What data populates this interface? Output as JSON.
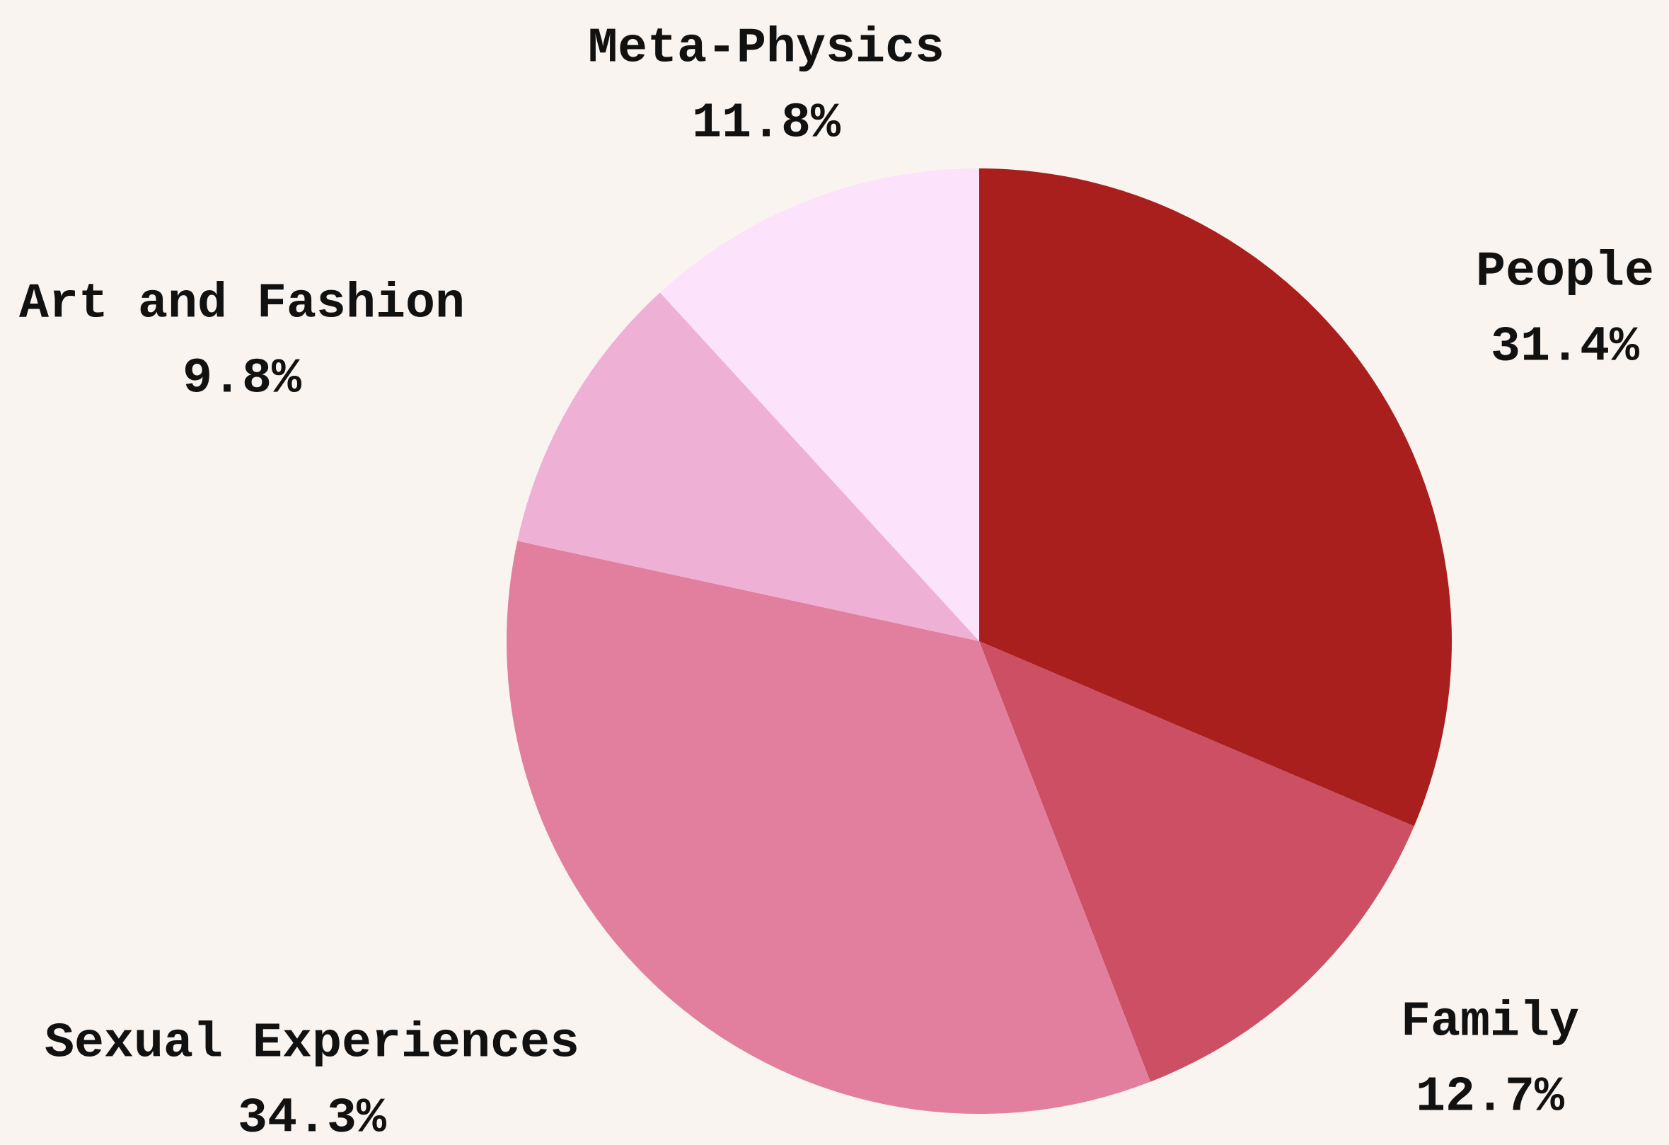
{
  "chart_data": {
    "type": "pie",
    "categories": [
      "People",
      "Family",
      "Sexual Experiences",
      "Art and Fashion",
      "Meta-Physics"
    ],
    "values": [
      31.4,
      12.7,
      34.3,
      9.8,
      11.8
    ],
    "value_labels": [
      "31.4%",
      "12.7%",
      "34.3%",
      "9.8%",
      "11.8%"
    ],
    "colors": [
      "#a81f1d",
      "#cc4f64",
      "#e27f9f",
      "#efb0d5",
      "#fde2fb"
    ]
  }
}
